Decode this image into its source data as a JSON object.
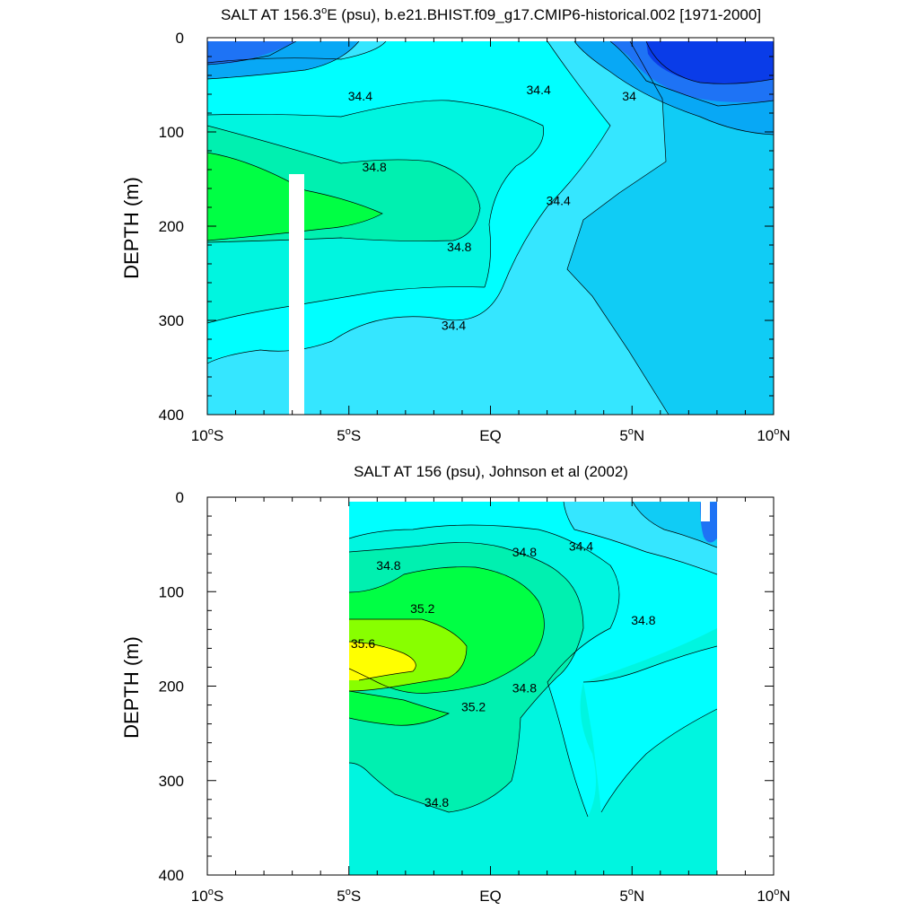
{
  "chart_data": [
    {
      "type": "contour",
      "title": "SALT AT 156.3°E (psu), b.e21.BHIST.f09_g17.CMIP6-historical.002 [1971-2000]",
      "title_parts": {
        "pre": "SALT AT 156.3",
        "sup": "o",
        "post": "E (psu), b.e21.BHIST.f09_g17.CMIP6-historical.002 [1971-2000]"
      },
      "ylabel": "DEPTH (m)",
      "xlabel": "",
      "xlim": [
        -10,
        10
      ],
      "ylim": [
        0,
        400
      ],
      "y_inverted": true,
      "xticks": [
        {
          "v": -10,
          "num": "10",
          "sup": "o",
          "hem": "S"
        },
        {
          "v": -5,
          "num": "5",
          "sup": "o",
          "hem": "S"
        },
        {
          "v": 0,
          "num": "EQ",
          "sup": "",
          "hem": ""
        },
        {
          "v": 5,
          "num": "5",
          "sup": "o",
          "hem": "N"
        },
        {
          "v": 10,
          "num": "10",
          "sup": "o",
          "hem": "N"
        }
      ],
      "yticks": [
        0,
        100,
        200,
        300,
        400
      ],
      "missing_columns": [
        {
          "x0": -7.1,
          "x1": -6.5,
          "y0": 145,
          "y1": 400
        }
      ],
      "contour_labels": [
        {
          "text": "34.4",
          "x": -4.6,
          "y": 62
        },
        {
          "text": "34.4",
          "x": 1.7,
          "y": 55
        },
        {
          "text": "34",
          "x": 4.9,
          "y": 62
        },
        {
          "text": "34.8",
          "x": -4.1,
          "y": 137
        },
        {
          "text": "34.8",
          "x": -1.1,
          "y": 222
        },
        {
          "text": "34.4",
          "x": 2.4,
          "y": 173
        },
        {
          "text": "34.4",
          "x": -1.3,
          "y": 305
        }
      ]
    },
    {
      "type": "contour",
      "title": "SALT AT 156 (psu), Johnson et al (2002)",
      "ylabel": "DEPTH (m)",
      "xlabel": "",
      "xlim": [
        -10,
        10
      ],
      "ylim": [
        0,
        400
      ],
      "y_inverted": true,
      "data_extent_x": [
        -5,
        8
      ],
      "xticks": [
        {
          "v": -10,
          "num": "10",
          "sup": "o",
          "hem": "S"
        },
        {
          "v": -5,
          "num": "5",
          "sup": "o",
          "hem": "S"
        },
        {
          "v": 0,
          "num": "EQ",
          "sup": "",
          "hem": ""
        },
        {
          "v": 5,
          "num": "5",
          "sup": "o",
          "hem": "N"
        },
        {
          "v": 10,
          "num": "10",
          "sup": "o",
          "hem": "N"
        }
      ],
      "yticks": [
        0,
        100,
        200,
        300,
        400
      ],
      "contour_labels": [
        {
          "text": "34.8",
          "x": -3.6,
          "y": 72
        },
        {
          "text": "35.2",
          "x": -2.4,
          "y": 118
        },
        {
          "text": "35.6",
          "x": -4.5,
          "y": 155
        },
        {
          "text": "35.2",
          "x": -0.6,
          "y": 222
        },
        {
          "text": "34.8",
          "x": 1.2,
          "y": 58
        },
        {
          "text": "34.4",
          "x": 3.2,
          "y": 52
        },
        {
          "text": "34.8",
          "x": 5.4,
          "y": 130
        },
        {
          "text": "34.8",
          "x": 1.2,
          "y": 202
        },
        {
          "text": "34.8",
          "x": -1.9,
          "y": 323
        }
      ]
    }
  ],
  "colors": {
    "dark_blue": "#0a3ce8",
    "blue": "#1e73f5",
    "mid_blue": "#08a8f5",
    "light_blue": "#10ccf5",
    "sky": "#35e6ff",
    "cyan": "#00ffff",
    "aqua_green": "#00f5e0",
    "mint": "#00f0b0",
    "green": "#00ff44",
    "lime": "#88ff00",
    "yellow": "#ffff00",
    "white": "#ffffff"
  }
}
